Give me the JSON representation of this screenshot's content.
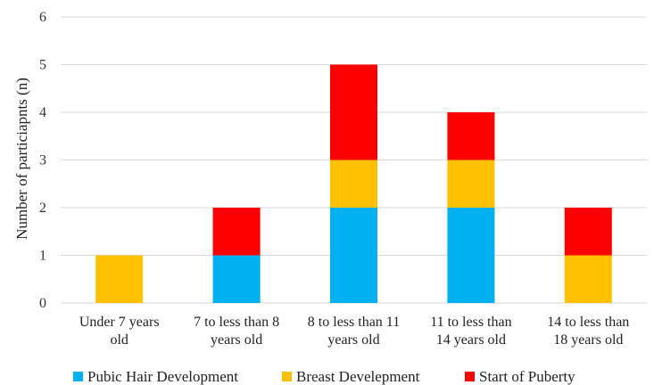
{
  "chart_data": {
    "type": "bar",
    "stacked": true,
    "categories": [
      [
        "Under 7 years",
        "old"
      ],
      [
        "7 to less than 8",
        "years old"
      ],
      [
        "8 to less than 11",
        "years old"
      ],
      [
        "11 to less than",
        "14 years old"
      ],
      [
        "14 to less than",
        "18 years old"
      ]
    ],
    "series": [
      {
        "name": "Pubic Hair Development",
        "color": "#00b0f0",
        "values": [
          0,
          1,
          2,
          2,
          0
        ]
      },
      {
        "name": "Breast Develepment",
        "color": "#ffc000",
        "values": [
          1,
          0,
          1,
          1,
          1
        ]
      },
      {
        "name": "Start of Puberty",
        "color": "#ff0000",
        "values": [
          0,
          1,
          2,
          1,
          1
        ]
      }
    ],
    "ylabel": "Number of particiapnts (n)",
    "ylim": [
      0,
      6
    ],
    "yticks": [
      0,
      1,
      2,
      3,
      4,
      5,
      6
    ],
    "grid": true,
    "legend": "bottom"
  }
}
